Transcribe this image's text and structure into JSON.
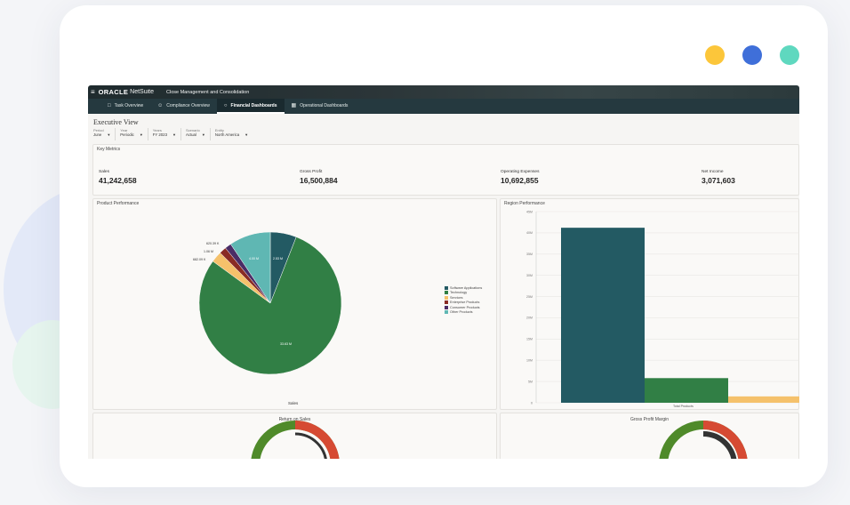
{
  "decor": {
    "dot_colors": [
      "#fcc63a",
      "#3f6fd9",
      "#5fd8bf"
    ]
  },
  "app": {
    "brand": "ORACLE",
    "brand_product": "NetSuite",
    "module": "Close Management and Consolidation",
    "menu_icon": "hamburger-icon"
  },
  "nav": {
    "tabs": [
      {
        "label": "Task Overview",
        "icon": "calendar-icon",
        "active": false
      },
      {
        "label": "Compliance Overview",
        "icon": "person-icon",
        "active": false
      },
      {
        "label": "Financial Dashboards",
        "icon": "lock-icon",
        "active": true
      },
      {
        "label": "Operational Dashboards",
        "icon": "grid-icon",
        "active": false
      }
    ]
  },
  "page": {
    "title": "Executive View"
  },
  "filters": [
    {
      "label": "Period",
      "value": "June"
    },
    {
      "label": "Year",
      "value": "Periodic"
    },
    {
      "label": "Years",
      "value": "FY 2023"
    },
    {
      "label": "Scenario",
      "value": "Actual"
    },
    {
      "label": "Entity",
      "value": "North America"
    }
  ],
  "key_metrics": {
    "title": "Key Metrics",
    "items": [
      {
        "label": "Sales",
        "value": "41,242,658"
      },
      {
        "label": "Gross Profit",
        "value": "16,500,884"
      },
      {
        "label": "Operating Expenses",
        "value": "10,692,855"
      },
      {
        "label": "Net Income",
        "value": "3,071,603"
      }
    ]
  },
  "product_panel": {
    "title": "Product Performance",
    "footer": "Sales",
    "slice_labels": [
      "2.53 M",
      "33.63 M",
      "682.09 K",
      "1.06 M",
      "620.39 K",
      "4.00 M"
    ]
  },
  "region_panel": {
    "title": "Region Performance"
  },
  "roi_panel": {
    "title": "Return on Sales"
  },
  "gpm_panel": {
    "title": "Gross Profit Margin"
  },
  "chart_data": [
    {
      "type": "pie",
      "title": "Product Performance",
      "xlabel": "Sales",
      "categories": [
        "Software Applications",
        "Technology",
        "Services",
        "Enterprise Products",
        "Consumer Products",
        "Other Products"
      ],
      "values": [
        2.53,
        33.63,
        1.06,
        0.68209,
        0.62039,
        4.0
      ],
      "value_labels": [
        "2.53 M",
        "33.63 M",
        "1.06 M",
        "682.09 K",
        "620.39 K",
        "4.00 M"
      ],
      "colors": [
        "#235a63",
        "#317f45",
        "#f5c16b",
        "#8a2b24",
        "#4a2c66",
        "#5fb7b3"
      ],
      "legend": "right"
    },
    {
      "type": "bar",
      "title": "Region Performance",
      "categories": [
        "Total Products"
      ],
      "series": [
        {
          "values": [
            41.2
          ],
          "color": "#235a63"
        },
        {
          "values": [
            5.8
          ],
          "color": "#317f45"
        },
        {
          "values": [
            1.5
          ],
          "color": "#f5c16b"
        }
      ],
      "ylim": [
        0,
        45
      ],
      "yticks": [
        "0",
        "5M",
        "10M",
        "15M",
        "20M",
        "25M",
        "30M",
        "35M",
        "40M",
        "45M"
      ],
      "ytick_values": [
        0,
        5,
        10,
        15,
        20,
        25,
        30,
        35,
        40,
        45
      ],
      "grid": true
    }
  ]
}
